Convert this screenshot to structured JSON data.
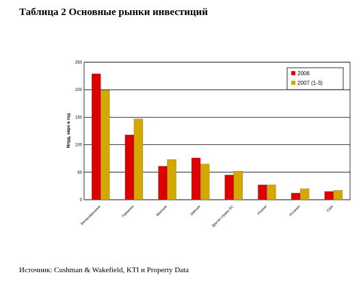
{
  "header": {
    "title": "Таблица 2  Основные рынки инвестиций"
  },
  "chart_data": {
    "type": "bar",
    "y_label": "Млрд. евро в год",
    "categories": [
      "Великобритания",
      "Германия",
      "Франция",
      "Швеция",
      "Другие страны ЕС",
      "Италия",
      "Испания",
      "США"
    ],
    "series": [
      {
        "name": "2006",
        "color": "#dd0000",
        "values": [
          229,
          118,
          61,
          76,
          45,
          27,
          12,
          15
        ]
      },
      {
        "name": "2007 (1-3)",
        "color": "#d4a800",
        "values": [
          199,
          147,
          73,
          65,
          52,
          27,
          20,
          17
        ]
      }
    ],
    "ylim": [
      0,
      250
    ],
    "yticks": [
      0,
      50,
      100,
      150,
      200,
      250
    ],
    "grid": true,
    "legend": "top-right"
  },
  "footer": {
    "source": "Источник: Cushman & Wakefield, KTI и Property Data"
  }
}
